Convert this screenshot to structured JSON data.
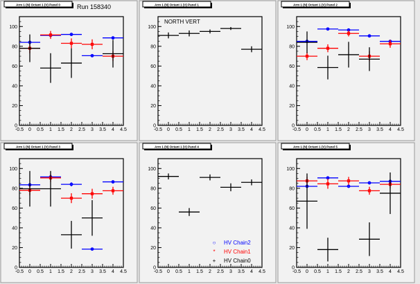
{
  "canvas": {
    "run_label": "Run 158340",
    "north_label": "NORTH VERT"
  },
  "legend": [
    {
      "name": "HV Chain2",
      "color": "#0000ff",
      "marker": "circle"
    },
    {
      "name": "HV Chain1",
      "color": "#ff0000",
      "marker": "star"
    },
    {
      "name": "HV Chain0",
      "color": "#000000",
      "marker": "cross"
    }
  ],
  "chart_data": [
    {
      "type": "scatter",
      "title": "Arm 1 (N) Octant 1 (V) Panel 0",
      "xlim": [
        -0.5,
        4.5
      ],
      "ylim": [
        0,
        110
      ],
      "xticks": [
        "-0.5",
        "0",
        "0.5",
        "1",
        "1.5",
        "2",
        "2.5",
        "3",
        "3.5",
        "4",
        "4.5"
      ],
      "yticks": [
        "0",
        "20",
        "40",
        "60",
        "80",
        "100"
      ],
      "x": [
        0,
        1,
        2,
        3,
        4
      ],
      "xerr": 0.5,
      "series": [
        {
          "name": "HV Chain2",
          "values": [
            84,
            91,
            92,
            70.5,
            88.5
          ],
          "err": [
            1.5,
            1.5,
            1.5,
            1.5,
            1.5
          ]
        },
        {
          "name": "HV Chain1",
          "values": [
            78,
            91.5,
            83,
            82,
            70
          ],
          "err": [
            5,
            4,
            5,
            5,
            5
          ]
        },
        {
          "name": "HV Chain0",
          "values": [
            78,
            58,
            63,
            null,
            72.5
          ],
          "err": [
            14,
            15,
            15,
            0,
            14
          ]
        }
      ]
    },
    {
      "type": "scatter",
      "title": "Arm 1 (N) Octant 1 (V) Panel 1",
      "xlim": [
        -0.5,
        4.5
      ],
      "ylim": [
        0,
        110
      ],
      "xticks": [
        "-0.5",
        "0",
        "0.5",
        "1",
        "1.5",
        "2",
        "2.5",
        "3",
        "3.5",
        "4",
        "4.5"
      ],
      "yticks": [
        "0",
        "20",
        "40",
        "60",
        "80",
        "100"
      ],
      "x": [
        0,
        1,
        2,
        3,
        4
      ],
      "xerr": 0.5,
      "series": [
        {
          "name": "HV Chain0",
          "values": [
            91,
            93,
            95,
            98,
            77
          ],
          "err": [
            3,
            3,
            2,
            1.5,
            3
          ]
        }
      ]
    },
    {
      "type": "scatter",
      "title": "Arm 1 (N) Octant 1 (V) Panel 2",
      "xlim": [
        -0.5,
        4.5
      ],
      "ylim": [
        0,
        110
      ],
      "xticks": [
        "-0.5",
        "0",
        "0.5",
        "1",
        "1.5",
        "2",
        "2.5",
        "3",
        "3.5",
        "4",
        "4.5"
      ],
      "yticks": [
        "0",
        "20",
        "40",
        "60",
        "80",
        "100"
      ],
      "x": [
        0,
        1,
        2,
        3,
        4
      ],
      "xerr": 0.5,
      "series": [
        {
          "name": "HV Chain2",
          "values": [
            85,
            97.5,
            96.5,
            90.5,
            85
          ],
          "err": [
            1.5,
            1,
            1,
            1.5,
            1.5
          ]
        },
        {
          "name": "HV Chain1",
          "values": [
            70,
            78,
            93,
            70,
            82.5
          ],
          "err": [
            4,
            4,
            3,
            5,
            4
          ]
        },
        {
          "name": "HV Chain0",
          "values": [
            84,
            58.5,
            71.5,
            67,
            null
          ],
          "err": [
            11,
            12,
            13,
            12,
            0
          ]
        }
      ]
    },
    {
      "type": "scatter",
      "title": "Arm 1 (N) Octant 1 (V) Panel 3",
      "xlim": [
        -0.5,
        4.5
      ],
      "ylim": [
        0,
        110
      ],
      "xticks": [
        "-0.5",
        "0",
        "0.5",
        "1",
        "1.5",
        "2",
        "2.5",
        "3",
        "3.5",
        "4",
        "4.5"
      ],
      "yticks": [
        "0",
        "20",
        "40",
        "60",
        "80",
        "100"
      ],
      "x": [
        0,
        1,
        2,
        3,
        4
      ],
      "xerr": 0.5,
      "series": [
        {
          "name": "HV Chain2",
          "values": [
            83.5,
            91.5,
            84,
            18.5,
            86.5
          ],
          "err": [
            1.5,
            1.5,
            2,
            1,
            1.5
          ]
        },
        {
          "name": "HV Chain1",
          "values": [
            78,
            90.5,
            70,
            74.5,
            77.5
          ],
          "err": [
            5,
            4,
            5,
            5,
            4
          ]
        },
        {
          "name": "HV Chain0",
          "values": [
            79.5,
            79.5,
            33,
            50,
            null
          ],
          "err": [
            18,
            18,
            14,
            18,
            0
          ]
        }
      ]
    },
    {
      "type": "scatter",
      "title": "Arm 1 (N) Octant 1 (V) Panel 4",
      "xlim": [
        -0.5,
        4.5
      ],
      "ylim": [
        0,
        110
      ],
      "xticks": [
        "-0.5",
        "0",
        "0.5",
        "1",
        "1.5",
        "2",
        "2.5",
        "3",
        "3.5",
        "4",
        "4.5"
      ],
      "yticks": [
        "0",
        "20",
        "40",
        "60",
        "80",
        "100"
      ],
      "x": [
        0,
        1,
        2,
        3,
        4
      ],
      "xerr": 0.5,
      "series": [
        {
          "name": "HV Chain0",
          "values": [
            92,
            56,
            91,
            81,
            86
          ],
          "err": [
            3,
            4,
            3,
            4,
            3
          ]
        }
      ]
    },
    {
      "type": "scatter",
      "title": "Arm 1 (N) Octant 1 (V) Panel 5",
      "xlim": [
        -0.5,
        4.5
      ],
      "ylim": [
        0,
        110
      ],
      "xticks": [
        "-0.5",
        "0",
        "0.5",
        "1",
        "1.5",
        "2",
        "2.5",
        "3",
        "3.5",
        "4",
        "4.5"
      ],
      "yticks": [
        "0",
        "20",
        "40",
        "60",
        "80",
        "100"
      ],
      "x": [
        0,
        1,
        2,
        3,
        4
      ],
      "xerr": 0.5,
      "series": [
        {
          "name": "HV Chain2",
          "values": [
            82,
            90.5,
            82,
            85.5,
            87
          ],
          "err": [
            1.5,
            1.5,
            1.5,
            1.5,
            1.5
          ]
        },
        {
          "name": "HV Chain1",
          "values": [
            87.5,
            84.5,
            87.5,
            77.5,
            84
          ],
          "err": [
            4,
            5,
            4,
            4,
            4
          ]
        },
        {
          "name": "HV Chain0",
          "values": [
            67,
            18,
            null,
            28.5,
            75
          ],
          "err": [
            28,
            12,
            0,
            17,
            21
          ]
        }
      ]
    }
  ]
}
